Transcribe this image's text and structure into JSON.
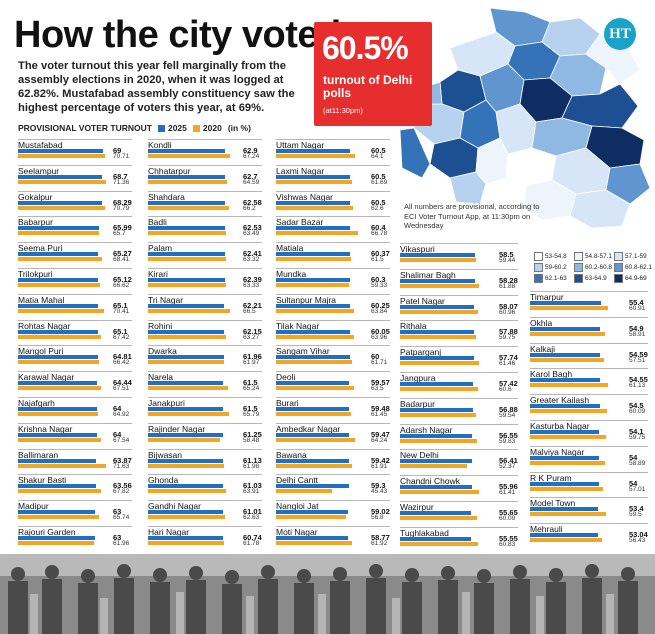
{
  "title": "How the city voted",
  "subtitle": "The voter turnout this year fell marginally from the assembly elections in 2020, when it was logged at 62.82%. Mustafabad assembly constituency saw the highest percentage of voters this year, at 69%.",
  "badge": {
    "value": "60.5%",
    "label": "turnout of Delhi polls",
    "time": "(at11:30pm)"
  },
  "logo": "HT",
  "note": "All numbers are provisional, according to ECI Voter Turnout App, at 11:30pm on Wednesday",
  "colors": {
    "y2025": "#1f6fc2",
    "y2020": "#f2a623"
  },
  "map_legend": [
    {
      "label": "53-54.8",
      "color": "#ffffff"
    },
    {
      "label": "54.8-57.1",
      "color": "#eef4fb"
    },
    {
      "label": "57.1-59",
      "color": "#d6e6f6"
    },
    {
      "label": "59-60.2",
      "color": "#b6d2ee"
    },
    {
      "label": "60.2-60.8",
      "color": "#8fb8e2"
    },
    {
      "label": "60.8-62.1",
      "color": "#5f96d0"
    },
    {
      "label": "62.1-63",
      "color": "#3573b9"
    },
    {
      "label": "63-64.9",
      "color": "#1d4f93"
    },
    {
      "label": "64.9-69",
      "color": "#0d2d63"
    }
  ],
  "chart_data": {
    "type": "bar",
    "title": "PROVISIONAL VOTER TURNOUT",
    "unit": "(in %)",
    "legend": [
      "2025",
      "2020"
    ],
    "ylim": [
      0,
      75
    ],
    "columns": [
      {
        "constituencies": [
          {
            "name": "Mustafabad",
            "v2025": "69",
            "v2020": "70.71"
          },
          {
            "name": "Seelampur",
            "v2025": "68.7",
            "v2020": "71.36"
          },
          {
            "name": "Gokalpur",
            "v2025": "68.29",
            "v2020": "70.79"
          },
          {
            "name": "Babarpur",
            "v2025": "65.99",
            "v2020": "65.7"
          },
          {
            "name": "Seema Puri",
            "v2025": "65.27",
            "v2020": "68.41"
          },
          {
            "name": "Trilokpuri",
            "v2025": "65.12",
            "v2020": "66.62"
          },
          {
            "name": "Matia Mahal",
            "v2025": "65.1",
            "v2020": "70.41"
          },
          {
            "name": "Rohtas Nagar",
            "v2025": "65.1",
            "v2020": "67.42"
          },
          {
            "name": "Mangol Puri",
            "v2025": "64.81",
            "v2020": "66.42"
          },
          {
            "name": "Karawal Nagar",
            "v2025": "64.44",
            "v2020": "67.51"
          },
          {
            "name": "Najafgarh",
            "v2025": "64",
            "v2020": "64.92"
          },
          {
            "name": "Krishna Nagar",
            "v2025": "64",
            "v2020": "67.54"
          },
          {
            "name": "Ballimaran",
            "v2025": "63.87",
            "v2020": "71.63"
          },
          {
            "name": "Shakur Basti",
            "v2025": "63.56",
            "v2020": "67.82"
          },
          {
            "name": "Madipur",
            "v2025": "63",
            "v2020": "65.74"
          },
          {
            "name": "Rajouri Garden",
            "v2025": "63",
            "v2020": "61.96"
          }
        ]
      },
      {
        "constituencies": [
          {
            "name": "Kondli",
            "v2025": "62.9",
            "v2020": "67.24"
          },
          {
            "name": "Chhatarpur",
            "v2025": "62.7",
            "v2020": "64.59"
          },
          {
            "name": "Shahdara",
            "v2025": "62.58",
            "v2020": "66.2"
          },
          {
            "name": "Badli",
            "v2025": "62.53",
            "v2020": "63.49"
          },
          {
            "name": "Palam",
            "v2025": "62.41",
            "v2020": "63.32"
          },
          {
            "name": "Kirari",
            "v2025": "62.39",
            "v2020": "63.33"
          },
          {
            "name": "Tri Nagar",
            "v2025": "62.21",
            "v2020": "66.5"
          },
          {
            "name": "Rohini",
            "v2025": "62.15",
            "v2020": "63.27"
          },
          {
            "name": "Dwarka",
            "v2025": "61.96",
            "v2020": "61.97"
          },
          {
            "name": "Narela",
            "v2025": "61.5",
            "v2020": "65.24"
          },
          {
            "name": "Janakpuri",
            "v2025": "61.5",
            "v2020": "65.79"
          },
          {
            "name": "Rajinder Nagar",
            "v2025": "61.25",
            "v2020": "58.48"
          },
          {
            "name": "Bijwasan",
            "v2025": "61.13",
            "v2020": "61.98"
          },
          {
            "name": "Ghonda",
            "v2025": "61.03",
            "v2020": "63.91"
          },
          {
            "name": "Gandhi Nagar",
            "v2025": "61.01",
            "v2020": "62.63"
          },
          {
            "name": "Hari Nagar",
            "v2025": "60.74",
            "v2020": "61.78"
          }
        ]
      },
      {
        "constituencies": [
          {
            "name": "Uttam Nagar",
            "v2025": "60.5",
            "v2020": "64.1"
          },
          {
            "name": "Laxmi Nagar",
            "v2025": "60.5",
            "v2020": "61.69"
          },
          {
            "name": "Vishwas Nagar",
            "v2025": "60.5",
            "v2020": "62.6"
          },
          {
            "name": "Sadar Bazar",
            "v2025": "60.4",
            "v2020": "66.78"
          },
          {
            "name": "Matiala",
            "v2025": "60.37",
            "v2020": "61.5"
          },
          {
            "name": "Mundka",
            "v2025": "60.3",
            "v2020": "59.33"
          },
          {
            "name": "Sultanpur Majra",
            "v2025": "60.25",
            "v2020": "63.84"
          },
          {
            "name": "Tilak Nagar",
            "v2025": "60.05",
            "v2020": "63.96"
          },
          {
            "name": "Sangam Vihar",
            "v2025": "60",
            "v2020": "61.71"
          },
          {
            "name": "Deoli",
            "v2025": "59.57",
            "v2020": "63.5"
          },
          {
            "name": "Burari",
            "v2025": "59.48",
            "v2020": "61.45"
          },
          {
            "name": "Ambedkar Nagar",
            "v2025": "59.47",
            "v2020": "64.24"
          },
          {
            "name": "Bawana",
            "v2025": "59.42",
            "v2020": "61.91"
          },
          {
            "name": "Delhi Cantt",
            "v2025": "59.3",
            "v2020": "45.43"
          },
          {
            "name": "Nangloi Jat",
            "v2025": "59.02",
            "v2020": "56.8"
          },
          {
            "name": "Moti Nagar",
            "v2025": "58.77",
            "v2020": "61.92"
          }
        ]
      },
      {
        "constituencies": [
          {
            "name": "Vikaspuri",
            "v2025": "58.5",
            "v2020": "59.44"
          },
          {
            "name": "Shalimar Bagh",
            "v2025": "58.28",
            "v2020": "61.88"
          },
          {
            "name": "Patel Nagar",
            "v2025": "58.07",
            "v2020": "60.96"
          },
          {
            "name": "Rithala",
            "v2025": "57.88",
            "v2020": "59.75"
          },
          {
            "name": "Patparganj",
            "v2025": "57.74",
            "v2020": "61.46"
          },
          {
            "name": "Jangpura",
            "v2025": "57.42",
            "v2020": "60.6"
          },
          {
            "name": "Badarpur",
            "v2025": "56.88",
            "v2020": "59.54"
          },
          {
            "name": "Adarsh Nagar",
            "v2025": "56.55",
            "v2020": "59.83"
          },
          {
            "name": "New Delhi",
            "v2025": "56.41",
            "v2020": "52.37"
          },
          {
            "name": "Chandni Chowk",
            "v2025": "55.96",
            "v2020": "61.41"
          },
          {
            "name": "Wazirpur",
            "v2025": "55.65",
            "v2020": "60.09"
          },
          {
            "name": "Tughlakabad",
            "v2025": "55.55",
            "v2020": "60.83"
          }
        ]
      },
      {
        "constituencies": [
          {
            "name": "Timarpur",
            "v2025": "55.4",
            "v2020": "60.91"
          },
          {
            "name": "Okhla",
            "v2025": "54.9",
            "v2020": "58.91"
          },
          {
            "name": "Kalkaji",
            "v2025": "54.59",
            "v2020": "57.51"
          },
          {
            "name": "Karol Bagh",
            "v2025": "54.55",
            "v2020": "61.13"
          },
          {
            "name": "Greater Kailash",
            "v2025": "54.5",
            "v2020": "60.09"
          },
          {
            "name": "Kasturba Nagar",
            "v2025": "54.1",
            "v2020": "59.75"
          },
          {
            "name": "Malviya Nagar",
            "v2025": "54",
            "v2020": "58.89"
          },
          {
            "name": "R K Puram",
            "v2025": "54",
            "v2020": "57.01"
          },
          {
            "name": "Model Town",
            "v2025": "53.4",
            "v2020": "59.5"
          },
          {
            "name": "Mehrauli",
            "v2025": "53.04",
            "v2020": "56.43"
          }
        ]
      }
    ]
  }
}
